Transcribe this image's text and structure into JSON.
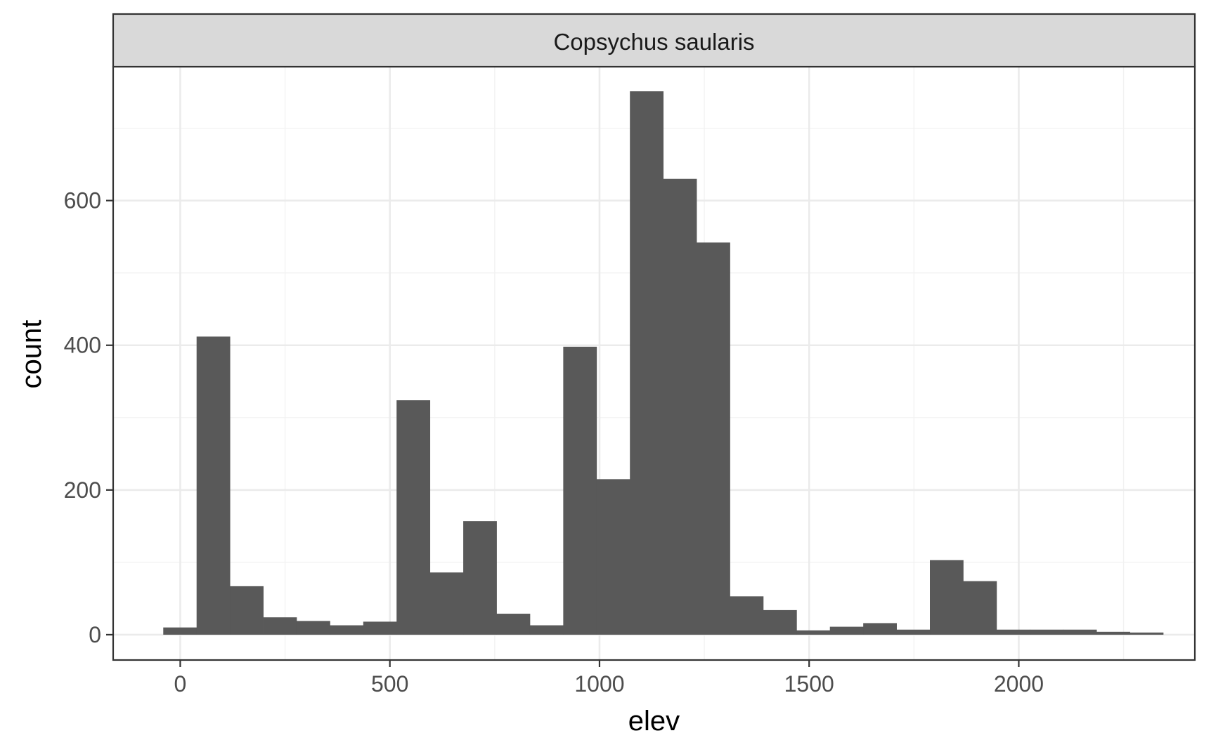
{
  "chart_data": {
    "type": "bar",
    "facet_label": "Copsychus saularis",
    "xlabel": "elev",
    "ylabel": "count",
    "xlim": [
      -160,
      2420
    ],
    "ylim": [
      -35,
      785
    ],
    "x_ticks": [
      0,
      500,
      1000,
      1500,
      2000
    ],
    "x_tick_labels": [
      "0",
      "500",
      "1000",
      "1500",
      "2000"
    ],
    "x_minor_ticks": [
      250,
      750,
      1250,
      1750,
      2250
    ],
    "y_ticks": [
      0,
      200,
      400,
      600
    ],
    "y_tick_labels": [
      "0",
      "200",
      "400",
      "600"
    ],
    "y_minor_ticks": [
      100,
      300,
      500,
      700
    ],
    "grid": true,
    "bin_width": 79.5,
    "bins": [
      {
        "x0": -40.5,
        "x1": 39.0,
        "count": 10
      },
      {
        "x0": 39.0,
        "x1": 118.5,
        "count": 412
      },
      {
        "x0": 118.5,
        "x1": 198.0,
        "count": 67
      },
      {
        "x0": 198.0,
        "x1": 277.5,
        "count": 24
      },
      {
        "x0": 277.5,
        "x1": 357.0,
        "count": 19
      },
      {
        "x0": 357.0,
        "x1": 436.5,
        "count": 13
      },
      {
        "x0": 436.5,
        "x1": 516.0,
        "count": 18
      },
      {
        "x0": 516.0,
        "x1": 595.5,
        "count": 324
      },
      {
        "x0": 595.5,
        "x1": 675.0,
        "count": 86
      },
      {
        "x0": 675.0,
        "x1": 754.5,
        "count": 157
      },
      {
        "x0": 754.5,
        "x1": 834.0,
        "count": 29
      },
      {
        "x0": 834.0,
        "x1": 913.5,
        "count": 13
      },
      {
        "x0": 913.5,
        "x1": 993.0,
        "count": 398
      },
      {
        "x0": 993.0,
        "x1": 1072.5,
        "count": 215
      },
      {
        "x0": 1072.5,
        "x1": 1152.0,
        "count": 751
      },
      {
        "x0": 1152.0,
        "x1": 1231.5,
        "count": 630
      },
      {
        "x0": 1231.5,
        "x1": 1311.0,
        "count": 542
      },
      {
        "x0": 1311.0,
        "x1": 1390.5,
        "count": 53
      },
      {
        "x0": 1390.5,
        "x1": 1470.0,
        "count": 34
      },
      {
        "x0": 1470.0,
        "x1": 1549.5,
        "count": 6
      },
      {
        "x0": 1549.5,
        "x1": 1629.0,
        "count": 11
      },
      {
        "x0": 1629.0,
        "x1": 1708.5,
        "count": 16
      },
      {
        "x0": 1708.5,
        "x1": 1788.0,
        "count": 7
      },
      {
        "x0": 1788.0,
        "x1": 1867.5,
        "count": 103
      },
      {
        "x0": 1867.5,
        "x1": 1947.0,
        "count": 74
      },
      {
        "x0": 1947.0,
        "x1": 2026.5,
        "count": 7
      },
      {
        "x0": 2026.5,
        "x1": 2106.0,
        "count": 7
      },
      {
        "x0": 2106.0,
        "x1": 2185.5,
        "count": 7
      },
      {
        "x0": 2185.5,
        "x1": 2265.0,
        "count": 4
      },
      {
        "x0": 2265.0,
        "x1": 2344.5,
        "count": 3
      }
    ],
    "colors": {
      "bar": "#595959",
      "panel_border": "#333333",
      "strip_fill": "#d9d9d9",
      "grid_major": "#ebebeb",
      "grid_minor": "#f2f2f2",
      "tick": "#333333"
    }
  }
}
